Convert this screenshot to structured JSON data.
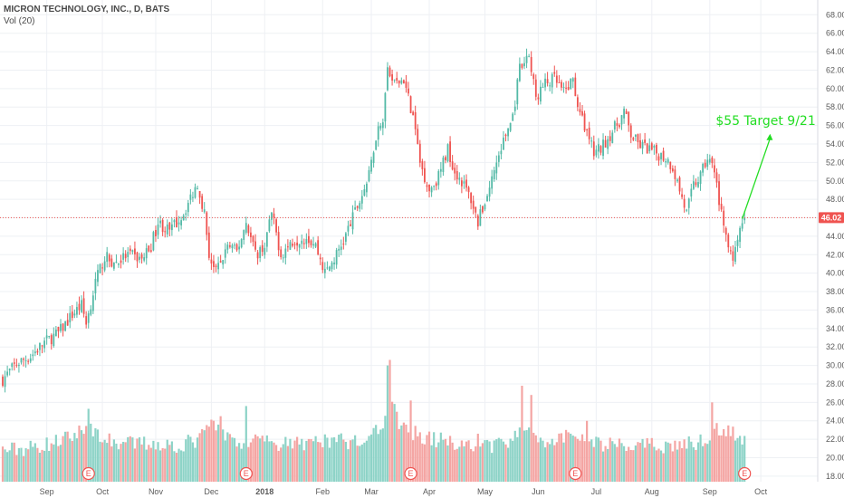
{
  "header": {
    "title": "MICRON TECHNOLOGY, INC., D, BATS",
    "volume_label": "Vol (20)"
  },
  "colors": {
    "up": "#53b9a6",
    "down": "#ef5350",
    "vol_up": "#8dd3c7",
    "vol_down": "#f4a5a3",
    "grid": "#eef0f4",
    "price_line": "#ef5350",
    "annotation": "#22dd22",
    "earnings": "#ef5350"
  },
  "chart_data": {
    "type": "candlestick",
    "title": "MICRON TECHNOLOGY, INC., D, BATS",
    "ylim": [
      17.4,
      69.6
    ],
    "grid": true,
    "y_ticks": [
      "18.00",
      "20.00",
      "22.00",
      "24.00",
      "26.00",
      "28.00",
      "30.00",
      "32.00",
      "34.00",
      "36.00",
      "38.00",
      "40.00",
      "42.00",
      "44.00",
      "46.00",
      "48.00",
      "50.00",
      "52.00",
      "54.00",
      "56.00",
      "58.00",
      "60.00",
      "62.00",
      "64.00",
      "66.00",
      "68.00"
    ],
    "x_ticks": [
      {
        "label": "Sep",
        "day": 19
      },
      {
        "label": "Oct",
        "day": 43
      },
      {
        "label": "Nov",
        "day": 66
      },
      {
        "label": "Dec",
        "day": 90
      },
      {
        "label": "2018",
        "day": 113,
        "bold": true
      },
      {
        "label": "Feb",
        "day": 138
      },
      {
        "label": "Mar",
        "day": 159
      },
      {
        "label": "Apr",
        "day": 184
      },
      {
        "label": "May",
        "day": 208
      },
      {
        "label": "Jun",
        "day": 231
      },
      {
        "label": "Jul",
        "day": 256
      },
      {
        "label": "Aug",
        "day": 280
      },
      {
        "label": "Sep",
        "day": 305
      },
      {
        "label": "Oct",
        "day": 327
      }
    ],
    "current_price": "46.02",
    "current_price_value": 46.02,
    "annotation": {
      "text": "$55 Target 9/21",
      "from": [
        319,
        45.9
      ],
      "to": [
        331,
        55.1
      ]
    },
    "earnings_markers": [
      {
        "label": "E",
        "day": 37
      },
      {
        "label": "E",
        "day": 105
      },
      {
        "label": "E",
        "day": 176
      },
      {
        "label": "E",
        "day": 247
      },
      {
        "label": "E",
        "day": 320
      }
    ],
    "price_keypoints": [
      [
        0,
        28.5
      ],
      [
        6,
        30.2
      ],
      [
        12,
        31.0
      ],
      [
        18,
        32.5
      ],
      [
        24,
        33.5
      ],
      [
        30,
        35.5
      ],
      [
        34,
        36.5
      ],
      [
        36,
        34.5
      ],
      [
        40,
        39.0
      ],
      [
        44,
        41.8
      ],
      [
        48,
        41.0
      ],
      [
        54,
        42.0
      ],
      [
        60,
        41.5
      ],
      [
        64,
        43.0
      ],
      [
        67,
        45.5
      ],
      [
        72,
        44.5
      ],
      [
        78,
        46.5
      ],
      [
        84,
        49.8
      ],
      [
        87,
        46.5
      ],
      [
        89,
        42.0
      ],
      [
        92,
        40.0
      ],
      [
        97,
        43.0
      ],
      [
        101,
        42.3
      ],
      [
        105,
        45.5
      ],
      [
        109,
        42.0
      ],
      [
        113,
        43.0
      ],
      [
        116,
        46.5
      ],
      [
        120,
        42.0
      ],
      [
        125,
        43.5
      ],
      [
        131,
        44.0
      ],
      [
        135,
        43.0
      ],
      [
        139,
        40.0
      ],
      [
        143,
        41.5
      ],
      [
        147,
        43.5
      ],
      [
        151,
        46.0
      ],
      [
        155,
        48.5
      ],
      [
        158,
        50.5
      ],
      [
        161,
        55.0
      ],
      [
        164,
        57.0
      ],
      [
        166,
        62.0
      ],
      [
        169,
        60.5
      ],
      [
        173,
        61.0
      ],
      [
        177,
        57.0
      ],
      [
        180,
        52.0
      ],
      [
        184,
        49.0
      ],
      [
        188,
        50.5
      ],
      [
        192,
        53.5
      ],
      [
        195,
        51.0
      ],
      [
        198,
        50.0
      ],
      [
        202,
        48.0
      ],
      [
        205,
        45.5
      ],
      [
        209,
        48.5
      ],
      [
        213,
        52.0
      ],
      [
        217,
        55.0
      ],
      [
        220,
        57.0
      ],
      [
        223,
        62.0
      ],
      [
        227,
        63.5
      ],
      [
        230,
        59.0
      ],
      [
        234,
        60.5
      ],
      [
        238,
        61.0
      ],
      [
        242,
        59.5
      ],
      [
        246,
        61.0
      ],
      [
        249,
        57.0
      ],
      [
        252,
        55.5
      ],
      [
        255,
        53.0
      ],
      [
        258,
        53.5
      ],
      [
        262,
        55.0
      ],
      [
        266,
        56.5
      ],
      [
        268,
        57.5
      ],
      [
        271,
        55.0
      ],
      [
        274,
        54.0
      ],
      [
        278,
        53.5
      ],
      [
        282,
        53.0
      ],
      [
        286,
        52.5
      ],
      [
        289,
        51.5
      ],
      [
        292,
        49.0
      ],
      [
        295,
        46.5
      ],
      [
        298,
        49.5
      ],
      [
        301,
        50.5
      ],
      [
        304,
        52.5
      ],
      [
        307,
        51.0
      ],
      [
        309,
        48.0
      ],
      [
        311,
        44.5
      ],
      [
        313,
        43.5
      ],
      [
        315,
        42.0
      ],
      [
        317,
        44.0
      ],
      [
        319,
        45.5
      ],
      [
        320,
        46.0
      ]
    ],
    "volume_keypoints": [
      [
        0,
        20.8
      ],
      [
        10,
        21.0
      ],
      [
        20,
        21.5
      ],
      [
        30,
        22.3
      ],
      [
        37,
        23.5
      ],
      [
        45,
        21.8
      ],
      [
        55,
        21.5
      ],
      [
        65,
        21.6
      ],
      [
        75,
        21.3
      ],
      [
        85,
        22.0
      ],
      [
        90,
        23.8
      ],
      [
        95,
        22.5
      ],
      [
        102,
        21.8
      ],
      [
        110,
        21.6
      ],
      [
        118,
        21.5
      ],
      [
        126,
        21.4
      ],
      [
        134,
        21.7
      ],
      [
        142,
        21.9
      ],
      [
        150,
        21.8
      ],
      [
        158,
        22.5
      ],
      [
        164,
        23.8
      ],
      [
        168,
        25.5
      ],
      [
        172,
        23.5
      ],
      [
        176,
        22.8
      ],
      [
        180,
        22.5
      ],
      [
        186,
        22.0
      ],
      [
        192,
        21.8
      ],
      [
        200,
        21.5
      ],
      [
        208,
        21.3
      ],
      [
        215,
        21.6
      ],
      [
        222,
        22.2
      ],
      [
        228,
        23.5
      ],
      [
        232,
        22.0
      ],
      [
        238,
        21.8
      ],
      [
        245,
        22.5
      ],
      [
        250,
        21.7
      ],
      [
        258,
        21.5
      ],
      [
        266,
        21.3
      ],
      [
        274,
        21.2
      ],
      [
        282,
        21.3
      ],
      [
        290,
        21.4
      ],
      [
        298,
        21.5
      ],
      [
        303,
        22.0
      ],
      [
        307,
        23.5
      ],
      [
        311,
        22.5
      ],
      [
        315,
        22.8
      ],
      [
        320,
        21.8
      ]
    ],
    "volume_spikes": [
      [
        37,
        25.3
      ],
      [
        94,
        24.5
      ],
      [
        105,
        25.6
      ],
      [
        166,
        30.0
      ],
      [
        167,
        30.6
      ],
      [
        176,
        26.2
      ],
      [
        205,
        22.6
      ],
      [
        224,
        27.8
      ],
      [
        228,
        26.8
      ],
      [
        252,
        24.0
      ],
      [
        306,
        26.0
      ],
      [
        313,
        23.5
      ]
    ],
    "num_days": 321
  }
}
